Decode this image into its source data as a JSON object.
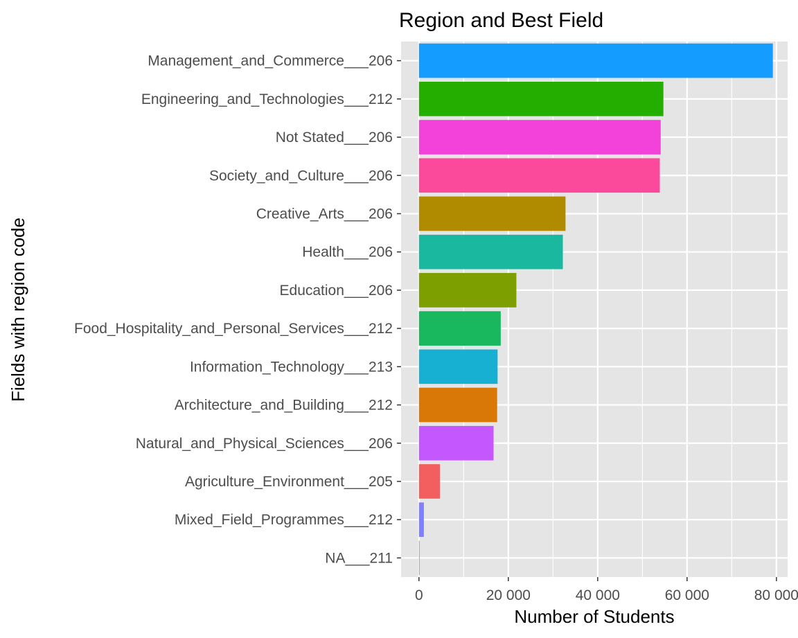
{
  "chart_data": {
    "type": "bar",
    "orientation": "horizontal",
    "title": "Region and Best Field",
    "xlabel": "Number of Students",
    "ylabel": "Fields with region code",
    "xlim": [
      -4000,
      82500
    ],
    "x_ticks": [
      0,
      20000,
      40000,
      60000,
      80000
    ],
    "x_tick_labels": [
      "0",
      "20 000",
      "40 000",
      "60 000",
      "80 000"
    ],
    "grid": true,
    "legend": "none",
    "panel_background": "#e5e5e5",
    "categories": [
      "Management_and_Commerce___206",
      "Engineering_and_Technologies___212",
      "Not Stated___206",
      "Society_and_Culture___206",
      "Creative_Arts___206",
      "Health___206",
      "Education___206",
      "Food_Hospitality_and_Personal_Services___212",
      "Information_Technology___213",
      "Architecture_and_Building___212",
      "Natural_and_Physical_Sciences___206",
      "Agriculture_Environment___205",
      "Mixed_Field_Programmes___212",
      "NA___211"
    ],
    "values": [
      79200,
      54700,
      54100,
      53900,
      32800,
      32200,
      21800,
      18300,
      17600,
      17500,
      16700,
      4700,
      1100,
      150
    ],
    "colors": [
      "#149cff",
      "#24ae00",
      "#f342da",
      "#fb4a9b",
      "#b08b00",
      "#19b89f",
      "#7e9f00",
      "#19b75e",
      "#18b0d2",
      "#d97806",
      "#c557ff",
      "#f35f5f",
      "#7f80ff",
      "#999999"
    ]
  }
}
